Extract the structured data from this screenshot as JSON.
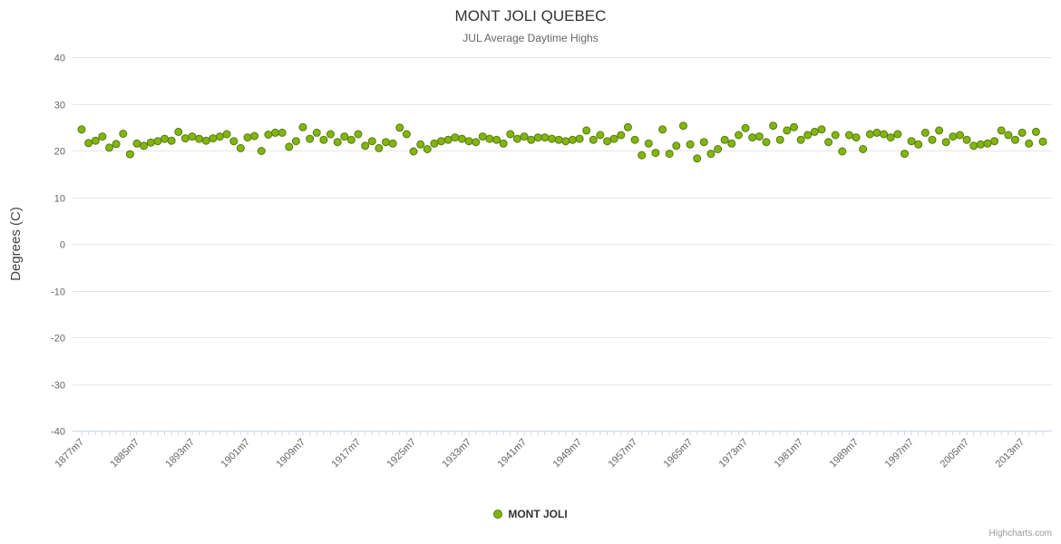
{
  "credits": {
    "label": "Highcharts.com"
  },
  "chart_data": {
    "type": "scatter",
    "title": "MONT JOLI QUEBEC",
    "subtitle": "JUL Average Daytime Highs",
    "ylabel": "Degrees (C)",
    "ylim": [
      -40,
      40
    ],
    "ytick_labels": [
      "40",
      "30",
      "20",
      "10",
      "0",
      "-10",
      "-20",
      "-30",
      "-40"
    ],
    "xtick_labels": [
      "1877m7",
      "1885m7",
      "1893m7",
      "1901m7",
      "1909m7",
      "1917m7",
      "1925m7",
      "1933m7",
      "1941m7",
      "1949m7",
      "1957m7",
      "1965m7",
      "1973m7",
      "1981m7",
      "1989m7",
      "1997m7",
      "2005m7",
      "2013m7"
    ],
    "x_start_year": 1877,
    "x_end_year": 2016,
    "x_tick_every": 8,
    "grid": "horizontal",
    "legend_position": "bottom",
    "series": [
      {
        "name": "MONT JOLI",
        "color": "#84b414",
        "border_color": "#567c0a",
        "values": [
          24.5,
          21.6,
          22.1,
          23.0,
          20.6,
          21.4,
          23.6,
          19.2,
          21.5,
          21.0,
          21.7,
          22.0,
          22.5,
          22.1,
          24.0,
          22.6,
          23.0,
          22.5,
          22.1,
          22.6,
          23.0,
          23.5,
          22.0,
          20.5,
          22.8,
          23.1,
          19.9,
          23.4,
          23.8,
          23.8,
          20.8,
          22.0,
          25.0,
          22.5,
          23.8,
          22.3,
          23.5,
          21.8,
          23.0,
          22.3,
          23.5,
          21.0,
          22.0,
          20.5,
          21.8,
          21.5,
          24.9,
          23.5,
          19.8,
          21.3,
          20.3,
          21.5,
          22.0,
          22.3,
          22.8,
          22.5,
          22.0,
          21.8,
          23.0,
          22.5,
          22.3,
          21.5,
          23.5,
          22.5,
          23.0,
          22.3,
          22.8,
          22.8,
          22.5,
          22.3,
          22.0,
          22.3,
          22.5,
          24.3,
          22.3,
          23.3,
          22.0,
          22.5,
          23.3,
          25.0,
          22.3,
          19.0,
          21.5,
          19.5,
          24.5,
          19.3,
          21.0,
          25.3,
          21.3,
          18.3,
          21.8,
          19.3,
          20.3,
          22.3,
          21.5,
          23.3,
          24.8,
          22.8,
          23.0,
          21.8,
          25.3,
          22.3,
          24.3,
          25.0,
          22.3,
          23.3,
          24.0,
          24.5,
          21.8,
          23.3,
          19.8,
          23.3,
          22.8,
          20.3,
          23.5,
          23.8,
          23.5,
          22.8,
          23.5,
          19.3,
          22.0,
          21.3,
          23.8,
          22.3,
          24.3,
          21.8,
          23.0,
          23.3,
          22.3,
          21.0,
          21.3,
          21.5,
          22.0,
          24.3,
          23.3,
          22.3,
          23.8,
          21.5,
          24.0,
          21.9
        ]
      }
    ]
  }
}
